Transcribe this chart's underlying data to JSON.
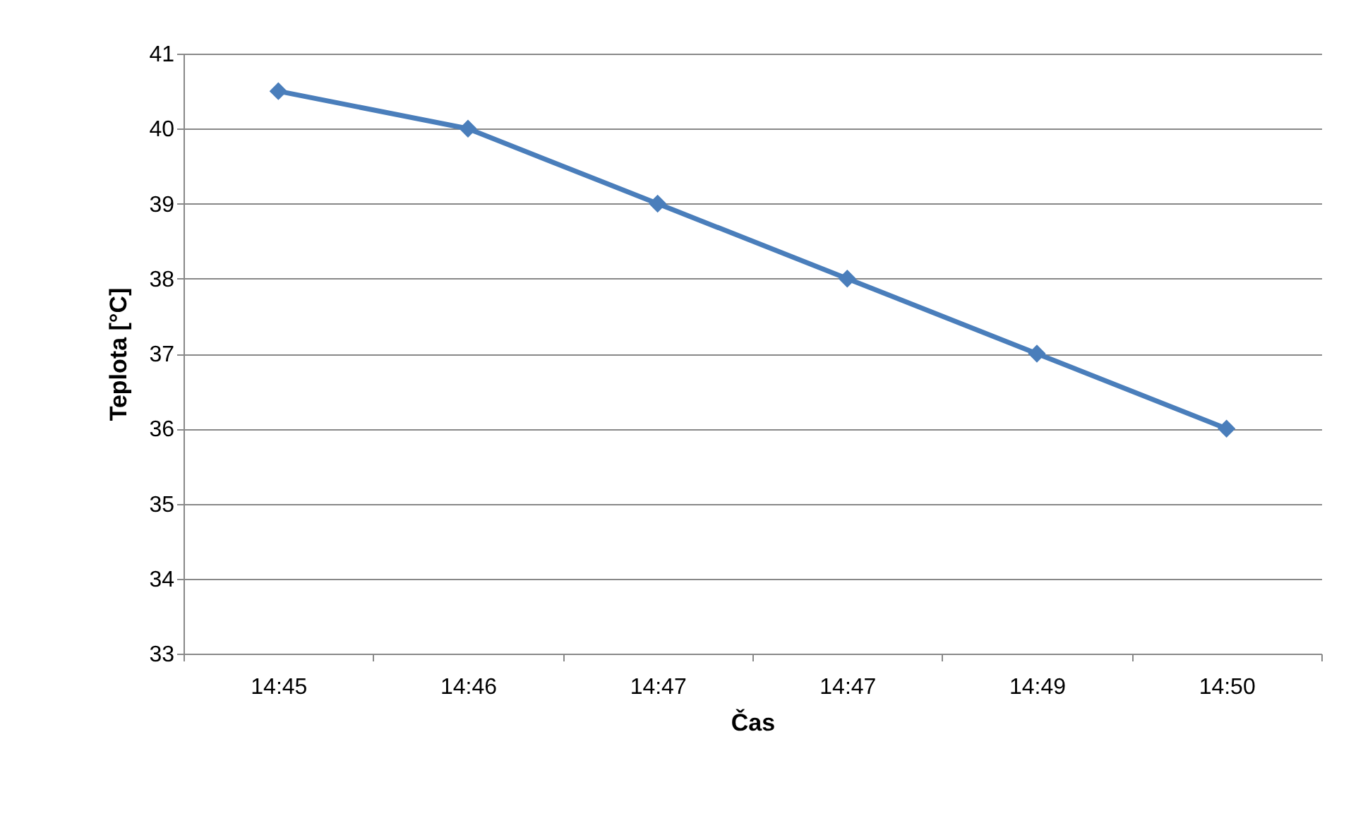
{
  "chart_data": {
    "type": "line",
    "xlabel": "Čas",
    "ylabel": "Teplota [°C]",
    "categories": [
      "14:45",
      "14:46",
      "14:47",
      "14:47",
      "14:49",
      "14:50"
    ],
    "series": [
      {
        "color": "#4a7ebb",
        "values": [
          40.5,
          40,
          39,
          38,
          37,
          36
        ]
      }
    ],
    "ylim": [
      33,
      41
    ],
    "yticks": [
      33,
      34,
      35,
      36,
      37,
      38,
      39,
      40,
      41
    ],
    "grid": "y",
    "marker": "diamond",
    "line_style": "solid"
  }
}
